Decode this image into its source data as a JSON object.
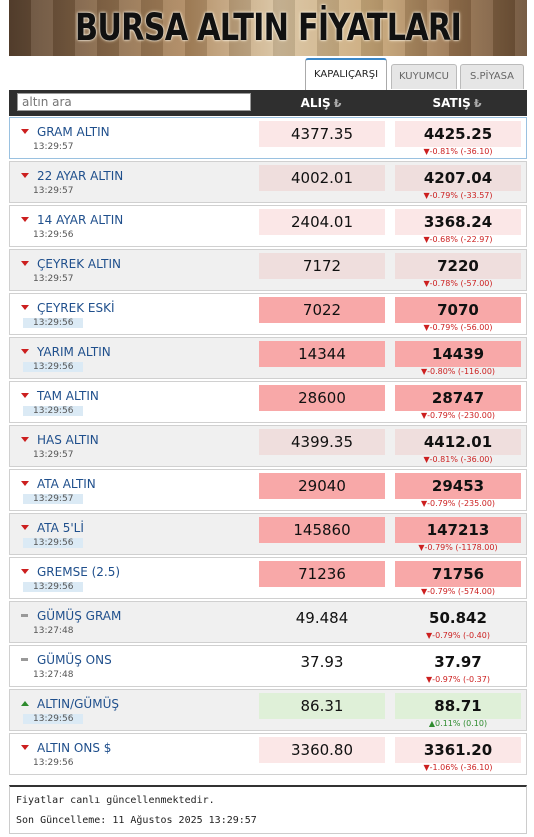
{
  "banner": {
    "title": "BURSA ALTIN FİYATLARI"
  },
  "tabs": [
    {
      "label": "KAPALIÇARŞI",
      "active": true
    },
    {
      "label": "KUYUMCU",
      "active": false
    },
    {
      "label": "S.PİYASA",
      "active": false
    }
  ],
  "search": {
    "placeholder": "altın ara"
  },
  "columns": {
    "buy": "ALIŞ",
    "sell": "SATIŞ",
    "currency_symbol": "₺"
  },
  "rows": [
    {
      "name": "GRAM ALTIN",
      "time": "13:29:57",
      "buy": "4377.35",
      "sell": "4425.25",
      "change": "▼-0.81% (-36.10)",
      "trend": "down",
      "highlight": "light"
    },
    {
      "name": "22 AYAR ALTIN",
      "time": "13:29:57",
      "buy": "4002.01",
      "sell": "4207.04",
      "change": "▼-0.79% (-33.57)",
      "trend": "down",
      "highlight": "light"
    },
    {
      "name": "14 AYAR ALTIN",
      "time": "13:29:56",
      "buy": "2404.01",
      "sell": "3368.24",
      "change": "▼-0.68% (-22.97)",
      "trend": "down",
      "highlight": "light"
    },
    {
      "name": "ÇEYREK ALTIN",
      "time": "13:29:57",
      "buy": "7172",
      "sell": "7220",
      "change": "▼-0.78% (-57.00)",
      "trend": "down",
      "highlight": "light"
    },
    {
      "name": "ÇEYREK ESKİ",
      "time": "13:29:56",
      "buy": "7022",
      "sell": "7070",
      "change": "▼-0.79% (-56.00)",
      "trend": "down",
      "highlight": "strong"
    },
    {
      "name": "YARIM ALTIN",
      "time": "13:29:56",
      "buy": "14344",
      "sell": "14439",
      "change": "▼-0.80% (-116.00)",
      "trend": "down",
      "highlight": "strong"
    },
    {
      "name": "TAM ALTIN",
      "time": "13:29:56",
      "buy": "28600",
      "sell": "28747",
      "change": "▼-0.79% (-230.00)",
      "trend": "down",
      "highlight": "strong"
    },
    {
      "name": "HAS ALTIN",
      "time": "13:29:57",
      "buy": "4399.35",
      "sell": "4412.01",
      "change": "▼-0.81% (-36.00)",
      "trend": "down",
      "highlight": "light"
    },
    {
      "name": "ATA ALTIN",
      "time": "13:29:57",
      "buy": "29040",
      "sell": "29453",
      "change": "▼-0.79% (-235.00)",
      "trend": "down",
      "highlight": "strong"
    },
    {
      "name": "ATA 5'Lİ",
      "time": "13:29:56",
      "buy": "145860",
      "sell": "147213",
      "change": "▼-0.79% (-1178.00)",
      "trend": "down",
      "highlight": "strong"
    },
    {
      "name": "GREMSE (2.5)",
      "time": "13:29:56",
      "buy": "71236",
      "sell": "71756",
      "change": "▼-0.79% (-574.00)",
      "trend": "down",
      "highlight": "strong"
    },
    {
      "name": "GÜMÜŞ GRAM",
      "time": "13:27:48",
      "buy": "49.484",
      "sell": "50.842",
      "change": "▼-0.79% (-0.40)",
      "trend": "flat",
      "highlight": "none"
    },
    {
      "name": "GÜMÜŞ ONS",
      "time": "13:27:48",
      "buy": "37.93",
      "sell": "37.97",
      "change": "▼-0.97% (-0.37)",
      "trend": "flat",
      "highlight": "none"
    },
    {
      "name": "ALTIN/GÜMÜŞ",
      "time": "13:29:56",
      "buy": "86.31",
      "sell": "88.71",
      "change": "▲0.11% (0.10)",
      "trend": "up",
      "highlight": "green"
    },
    {
      "name": "ALTIN ONS $",
      "time": "13:29:56",
      "buy": "3360.80",
      "sell": "3361.20",
      "change": "▼-1.06% (-36.10)",
      "trend": "down",
      "highlight": "light"
    }
  ],
  "footer": {
    "status": "Fiyatlar canlı güncellenmektedir.",
    "last_updated": "Son Güncelleme: 11 Ağustos 2025 13:29:57"
  }
}
